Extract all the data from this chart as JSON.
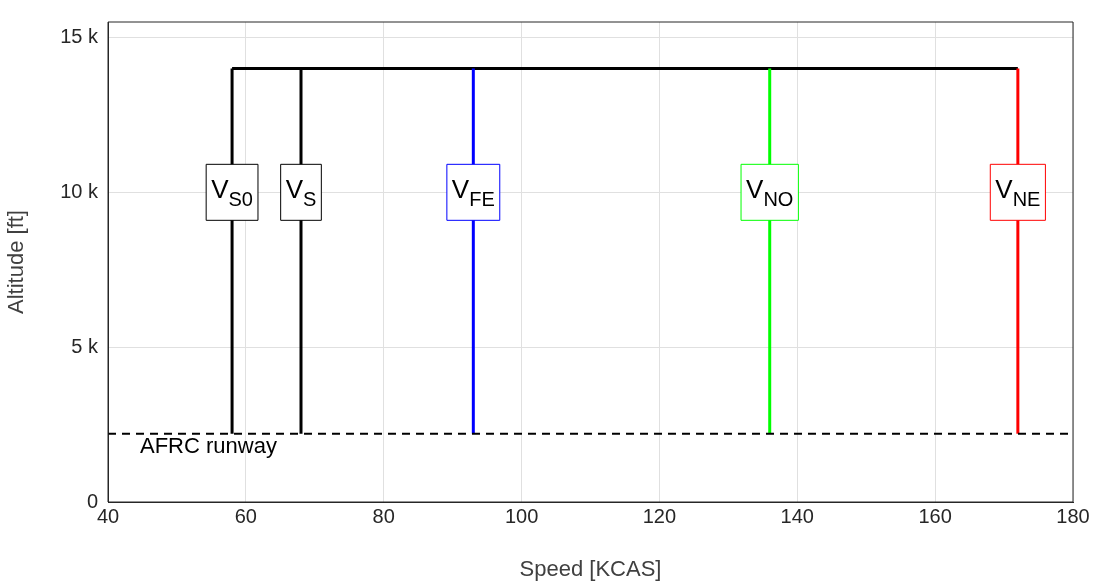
{
  "chart_data": {
    "type": "line",
    "xlabel": "Speed [KCAS]",
    "ylabel": "Altitude [ft]",
    "xlim": [
      40,
      180
    ],
    "xticks": [
      40,
      60,
      80,
      100,
      120,
      140,
      160,
      180
    ],
    "ylim": [
      0,
      15500
    ],
    "yticks": [
      {
        "value": 0,
        "label": "0"
      },
      {
        "value": 5000,
        "label": "5 k"
      },
      {
        "value": 10000,
        "label": "10 k"
      },
      {
        "value": 15000,
        "label": "15 k"
      }
    ],
    "grid": true,
    "legend": false,
    "marker": "none",
    "line_style": "solid",
    "series": [
      {
        "color": "#000000",
        "x": [
          58,
          58
        ],
        "values": [
          2200,
          14000
        ]
      },
      {
        "color": "#000000",
        "x": [
          68,
          68
        ],
        "values": [
          2200,
          14000
        ]
      },
      {
        "color": "#0000ff",
        "x": [
          93,
          93
        ],
        "values": [
          2200,
          14000
        ]
      },
      {
        "color": "#00ff00",
        "x": [
          136,
          136
        ],
        "values": [
          2200,
          14000
        ]
      },
      {
        "color": "#ff0000",
        "x": [
          172,
          172
        ],
        "values": [
          2200,
          14000
        ]
      },
      {
        "color": "#000000",
        "x": [
          58,
          172
        ],
        "values": [
          14000,
          14000
        ]
      }
    ],
    "annotations": [
      {
        "text": "V$_{S0}$",
        "x": 58,
        "y": 10000
      },
      {
        "text": "V$_{S}$",
        "x": 68,
        "y": 10000
      },
      {
        "text": "V$_{FE}$",
        "x": 93,
        "y": 10000
      },
      {
        "text": "V$_{NO}$",
        "x": 136,
        "y": 10000
      },
      {
        "text": "V$_{NE}$",
        "x": 172,
        "y": 10000
      }
    ],
    "ref_lines": [
      {
        "axis": "y",
        "value": 2200,
        "label": "AFRC runway",
        "color": "#000000",
        "line_style": "dashed"
      }
    ]
  }
}
